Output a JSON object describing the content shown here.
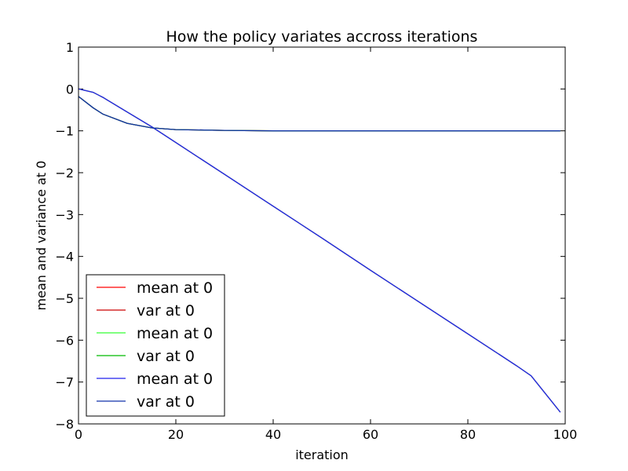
{
  "chart_data": {
    "type": "line",
    "title": "How the policy variates accross iterations",
    "xlabel": "iteration",
    "ylabel": "mean and variance at 0",
    "xlim": [
      0,
      100
    ],
    "ylim": [
      -8,
      1
    ],
    "x_ticks": [
      0,
      20,
      40,
      60,
      80,
      100
    ],
    "x_tick_labels": [
      "0",
      "20",
      "40",
      "60",
      "80",
      "100"
    ],
    "y_ticks": [
      1,
      0,
      -1,
      -2,
      -3,
      -4,
      -5,
      -6,
      -7,
      -8
    ],
    "y_tick_labels": [
      "1",
      "0",
      "−1",
      "−2",
      "−3",
      "−4",
      "−5",
      "−6",
      "−7",
      "−8"
    ],
    "grid": false,
    "legend_position": "lower-left",
    "x": [
      0,
      3,
      5,
      10,
      15,
      20,
      30,
      40,
      50,
      60,
      70,
      80,
      90,
      93,
      99
    ],
    "series": [
      {
        "name": "mean at 0",
        "color": "#ff0000",
        "values": [
          0.0,
          -0.08,
          -0.2,
          -0.55,
          -0.9,
          -1.28,
          -2.04,
          -2.8,
          -3.56,
          -4.33,
          -5.09,
          -5.85,
          -6.61,
          -6.85,
          -7.72
        ]
      },
      {
        "name": "var at 0",
        "color": "#cc0000",
        "values": [
          -0.18,
          -0.45,
          -0.6,
          -0.82,
          -0.93,
          -0.97,
          -0.99,
          -1.0,
          -1.0,
          -1.0,
          -1.0,
          -1.0,
          -1.0,
          -1.0,
          -1.0
        ]
      },
      {
        "name": "mean at 0",
        "color": "#33ff33",
        "values": [
          0.0,
          -0.08,
          -0.2,
          -0.55,
          -0.9,
          -1.28,
          -2.04,
          -2.8,
          -3.56,
          -4.33,
          -5.09,
          -5.85,
          -6.61,
          -6.85,
          -7.72
        ]
      },
      {
        "name": "var at 0",
        "color": "#00bb00",
        "values": [
          -0.18,
          -0.45,
          -0.6,
          -0.82,
          -0.93,
          -0.97,
          -0.99,
          -1.0,
          -1.0,
          -1.0,
          -1.0,
          -1.0,
          -1.0,
          -1.0,
          -1.0
        ]
      },
      {
        "name": "mean at 0",
        "color": "#2222ee",
        "values": [
          0.0,
          -0.08,
          -0.2,
          -0.55,
          -0.9,
          -1.28,
          -2.04,
          -2.8,
          -3.56,
          -4.33,
          -5.09,
          -5.85,
          -6.61,
          -6.85,
          -7.72
        ]
      },
      {
        "name": "var at 0",
        "color": "#1133aa",
        "values": [
          -0.18,
          -0.45,
          -0.6,
          -0.82,
          -0.93,
          -0.97,
          -0.99,
          -1.0,
          -1.0,
          -1.0,
          -1.0,
          -1.0,
          -1.0,
          -1.0,
          -1.0
        ]
      }
    ]
  }
}
